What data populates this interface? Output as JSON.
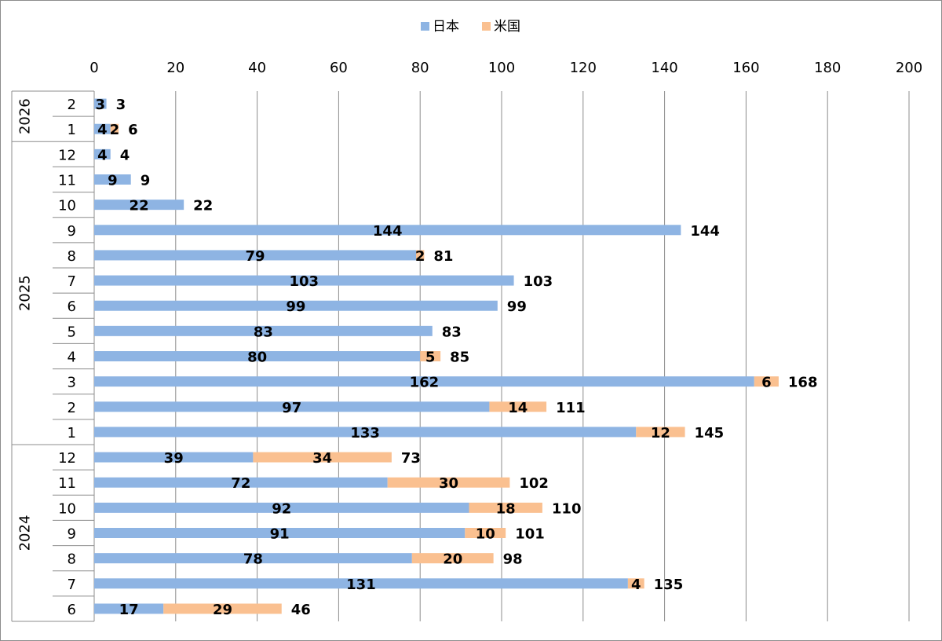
{
  "chart_data": {
    "type": "bar",
    "orientation": "horizontal",
    "stacked": true,
    "title": "",
    "xlabel": "",
    "ylabel": "",
    "xlim": [
      0,
      200
    ],
    "x_ticks": [
      0,
      20,
      40,
      60,
      80,
      100,
      120,
      140,
      160,
      180,
      200
    ],
    "grid": true,
    "legend_position": "top-center",
    "groups": [
      {
        "label": "2026",
        "months": [
          "2",
          "1"
        ]
      },
      {
        "label": "2025",
        "months": [
          "12",
          "11",
          "10",
          "9",
          "8",
          "7",
          "6",
          "5",
          "4",
          "3",
          "2",
          "1"
        ]
      },
      {
        "label": "2024",
        "months": [
          "12",
          "11",
          "10",
          "9",
          "8",
          "7",
          "6"
        ]
      }
    ],
    "categories": [
      "2026/2",
      "2026/1",
      "2025/12",
      "2025/11",
      "2025/10",
      "2025/9",
      "2025/8",
      "2025/7",
      "2025/6",
      "2025/5",
      "2025/4",
      "2025/3",
      "2025/2",
      "2025/1",
      "2024/12",
      "2024/11",
      "2024/10",
      "2024/9",
      "2024/8",
      "2024/7",
      "2024/6"
    ],
    "series": [
      {
        "name": "日本",
        "color": "#8EB4E3",
        "values": [
          3,
          4,
          4,
          9,
          22,
          144,
          79,
          103,
          99,
          83,
          80,
          162,
          97,
          133,
          39,
          72,
          92,
          91,
          78,
          131,
          17
        ]
      },
      {
        "name": "米国",
        "color": "#FAC090",
        "values": [
          0,
          2,
          0,
          0,
          0,
          0,
          2,
          0,
          0,
          0,
          5,
          6,
          14,
          12,
          34,
          30,
          18,
          10,
          20,
          4,
          29
        ]
      }
    ],
    "totals": [
      3,
      6,
      4,
      9,
      22,
      144,
      81,
      103,
      99,
      83,
      85,
      168,
      111,
      145,
      73,
      102,
      110,
      101,
      98,
      135,
      46
    ]
  }
}
